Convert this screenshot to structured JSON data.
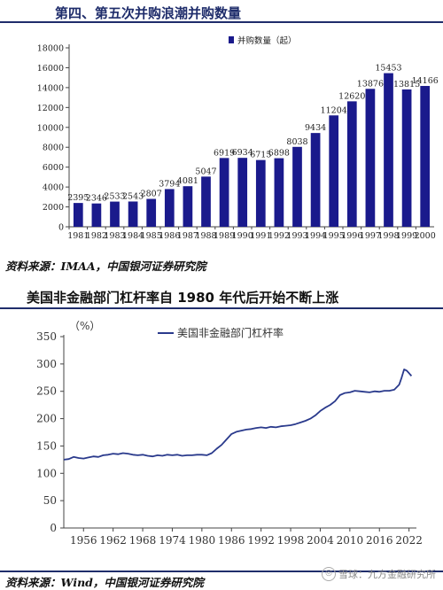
{
  "top": {
    "title": "第四、第五次并购浪潮并购数量",
    "source": "资料来源：IMAA，中国银河证券研究院"
  },
  "bottom": {
    "title": "美国非金融部门杠杆率自 1980 年代后开始不断上涨",
    "source": "资料来源：Wind，中国银河证券研究院"
  },
  "watermark": "雪球：九方金融研究所",
  "chart_data": [
    {
      "type": "bar",
      "title": "",
      "categories": [
        "1981",
        "1982",
        "1983",
        "1984",
        "1985",
        "1986",
        "1987",
        "1988",
        "1989",
        "1990",
        "1991",
        "1992",
        "1993",
        "1994",
        "1995",
        "1996",
        "1997",
        "1998",
        "1999",
        "2000"
      ],
      "series": [
        {
          "name": "并购数量（起）",
          "values": [
            2395,
            2346,
            2533,
            2543,
            2807,
            3794,
            4081,
            5047,
            6919,
            6934,
            6715,
            6898,
            8038,
            9434,
            11204,
            12620,
            13876,
            15453,
            13815,
            14166
          ],
          "color": "#1a1a8c"
        }
      ],
      "data_labels": [
        "2395",
        "2346",
        "2533",
        "2543",
        "2807",
        "3794",
        "4081",
        "5047",
        "6919",
        "6934",
        "6715",
        "6898",
        "8038",
        "9434",
        "11204",
        "12620",
        "13876",
        "15453",
        "13815",
        "14166"
      ],
      "yticks": [
        "0",
        "2000",
        "4000",
        "6000",
        "8000",
        "10000",
        "12000",
        "14000",
        "16000",
        "18000"
      ],
      "ylim": [
        0,
        18000
      ],
      "legend": "top-right"
    },
    {
      "type": "line",
      "title": "",
      "ylabel": "（%）",
      "xticks": [
        "1956",
        "1962",
        "1968",
        "1974",
        "1980",
        "1986",
        "1992",
        "1998",
        "2004",
        "2010",
        "2016",
        "2022"
      ],
      "yticks": [
        "0",
        "50",
        "100",
        "150",
        "200",
        "250",
        "300",
        "350"
      ],
      "ylim": [
        0,
        350
      ],
      "xlim": [
        1952,
        2023.5
      ],
      "series": [
        {
          "name": "美国非金融部门杠杆率",
          "color": "#2a3a8c",
          "x": [
            1952,
            1953,
            1954,
            1955,
            1956,
            1957,
            1958,
            1959,
            1960,
            1961,
            1962,
            1963,
            1964,
            1965,
            1966,
            1967,
            1968,
            1969,
            1970,
            1971,
            1972,
            1973,
            1974,
            1975,
            1976,
            1977,
            1978,
            1979,
            1980,
            1981,
            1982,
            1983,
            1984,
            1985,
            1986,
            1987,
            1988,
            1989,
            1990,
            1991,
            1992,
            1993,
            1994,
            1995,
            1996,
            1997,
            1998,
            1999,
            2000,
            2001,
            2002,
            2003,
            2004,
            2005,
            2006,
            2007,
            2008,
            2009,
            2010,
            2011,
            2012,
            2013,
            2014,
            2015,
            2016,
            2017,
            2018,
            2019,
            2020,
            2020.5,
            2021,
            2021.5,
            2022,
            2022.5
          ],
          "y": [
            125,
            126,
            130,
            128,
            127,
            129,
            131,
            130,
            133,
            134,
            136,
            135,
            137,
            136,
            134,
            133,
            134,
            132,
            131,
            133,
            132,
            134,
            133,
            134,
            132,
            133,
            133,
            134,
            134,
            133,
            137,
            145,
            152,
            162,
            172,
            176,
            178,
            180,
            181,
            183,
            184,
            183,
            185,
            184,
            186,
            187,
            188,
            190,
            193,
            196,
            200,
            206,
            214,
            220,
            225,
            232,
            243,
            247,
            248,
            251,
            250,
            249,
            248,
            250,
            249,
            251,
            251,
            253,
            262,
            275,
            290,
            288,
            283,
            278
          ]
        }
      ],
      "legend": "top-center"
    }
  ]
}
